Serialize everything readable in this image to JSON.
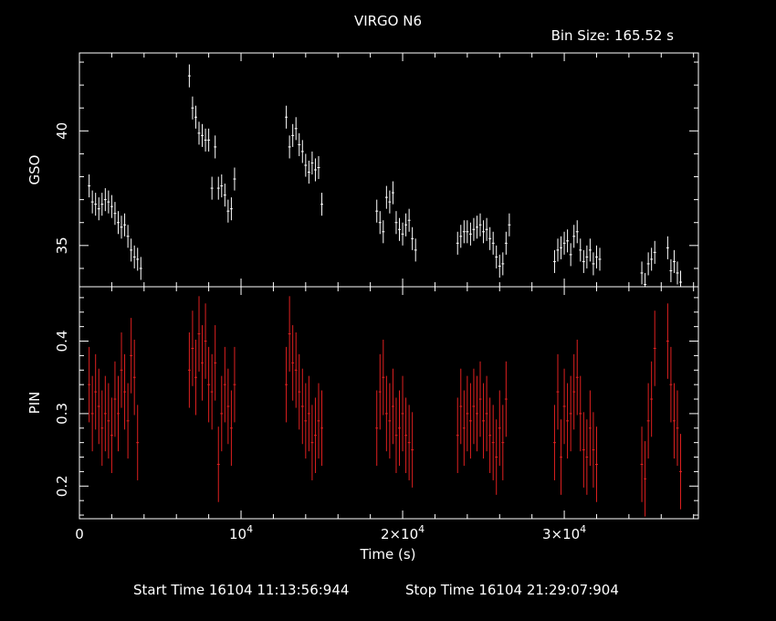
{
  "chart_data": {
    "type": "scatter",
    "title": "VIRGO N6",
    "bin_size": "Bin Size: 165.52 s",
    "xlabel": "Time (s)",
    "xlim": [
      0,
      38300
    ],
    "x_ticks": [
      {
        "value": 0,
        "label": "0",
        "exp": ""
      },
      {
        "value": 10000,
        "label": "10",
        "exp": "4"
      },
      {
        "value": 20000,
        "label": "2×10",
        "exp": "4"
      },
      {
        "value": 30000,
        "label": "3×10",
        "exp": "4"
      }
    ],
    "footer": {
      "start": "Start Time 16104 11:13:56:944",
      "stop": "Stop Time 16104 21:29:07:904"
    },
    "panels": [
      {
        "name": "GSO",
        "ylabel": "GSO",
        "ylim": [
          33.2,
          43.4
        ],
        "color": "#ffffff",
        "yticks": [
          35,
          40
        ],
        "yerr": 0.5,
        "points": [
          [
            600,
            37.6
          ],
          [
            800,
            36.9
          ],
          [
            1000,
            36.8
          ],
          [
            1200,
            36.6
          ],
          [
            1400,
            36.8
          ],
          [
            1600,
            37.0
          ],
          [
            1800,
            36.9
          ],
          [
            2000,
            36.7
          ],
          [
            2200,
            36.4
          ],
          [
            2400,
            36.0
          ],
          [
            2600,
            35.8
          ],
          [
            2800,
            35.9
          ],
          [
            3000,
            35.4
          ],
          [
            3200,
            34.8
          ],
          [
            3400,
            34.5
          ],
          [
            3600,
            34.4
          ],
          [
            3800,
            34.0
          ],
          [
            6800,
            42.4
          ],
          [
            7000,
            41.0
          ],
          [
            7200,
            40.6
          ],
          [
            7400,
            39.9
          ],
          [
            7600,
            39.8
          ],
          [
            7800,
            39.6
          ],
          [
            8000,
            39.6
          ],
          [
            8200,
            37.5
          ],
          [
            8400,
            39.3
          ],
          [
            8600,
            37.5
          ],
          [
            8800,
            37.6
          ],
          [
            9000,
            37.2
          ],
          [
            9200,
            36.5
          ],
          [
            9400,
            36.6
          ],
          [
            9600,
            37.9
          ],
          [
            12800,
            40.6
          ],
          [
            13000,
            39.3
          ],
          [
            13200,
            39.8
          ],
          [
            13400,
            40.1
          ],
          [
            13600,
            39.4
          ],
          [
            13800,
            39.1
          ],
          [
            14000,
            38.5
          ],
          [
            14200,
            38.2
          ],
          [
            14400,
            38.6
          ],
          [
            14600,
            38.3
          ],
          [
            14800,
            38.4
          ],
          [
            15000,
            36.8
          ],
          [
            18400,
            36.5
          ],
          [
            18600,
            36.0
          ],
          [
            18800,
            35.6
          ],
          [
            19000,
            37.1
          ],
          [
            19200,
            36.9
          ],
          [
            19400,
            37.3
          ],
          [
            19600,
            36.0
          ],
          [
            19800,
            35.7
          ],
          [
            20000,
            35.5
          ],
          [
            20200,
            35.9
          ],
          [
            20400,
            36.1
          ],
          [
            20600,
            35.3
          ],
          [
            20800,
            34.8
          ],
          [
            23400,
            35.1
          ],
          [
            23600,
            35.4
          ],
          [
            23800,
            35.6
          ],
          [
            24000,
            35.6
          ],
          [
            24200,
            35.5
          ],
          [
            24400,
            35.7
          ],
          [
            24600,
            35.8
          ],
          [
            24800,
            35.9
          ],
          [
            25000,
            35.6
          ],
          [
            25200,
            35.7
          ],
          [
            25400,
            35.3
          ],
          [
            25600,
            35.1
          ],
          [
            25800,
            34.5
          ],
          [
            26000,
            34.1
          ],
          [
            26200,
            34.2
          ],
          [
            26400,
            35.1
          ],
          [
            26600,
            35.9
          ],
          [
            29400,
            34.3
          ],
          [
            29600,
            34.8
          ],
          [
            29800,
            34.9
          ],
          [
            30000,
            35.1
          ],
          [
            30200,
            35.2
          ],
          [
            30400,
            34.6
          ],
          [
            30600,
            35.4
          ],
          [
            30800,
            35.6
          ],
          [
            31000,
            34.8
          ],
          [
            31200,
            34.3
          ],
          [
            31400,
            34.5
          ],
          [
            31600,
            34.8
          ],
          [
            31800,
            34.2
          ],
          [
            32000,
            34.5
          ],
          [
            32200,
            34.4
          ],
          [
            34800,
            33.8
          ],
          [
            35000,
            33.3
          ],
          [
            35200,
            34.2
          ],
          [
            35400,
            34.4
          ],
          [
            35600,
            34.7
          ],
          [
            36400,
            34.9
          ],
          [
            36600,
            33.9
          ],
          [
            36800,
            34.3
          ],
          [
            37000,
            33.8
          ],
          [
            37200,
            33.4
          ]
        ]
      },
      {
        "name": "PIN",
        "ylabel": "PIN",
        "ylim": [
          0.155,
          0.475
        ],
        "color": "#e02020",
        "yticks": [
          0.2,
          0.3,
          0.4
        ],
        "yerr": 0.052,
        "points": [
          [
            600,
            0.34
          ],
          [
            800,
            0.3
          ],
          [
            1000,
            0.33
          ],
          [
            1200,
            0.31
          ],
          [
            1400,
            0.28
          ],
          [
            1600,
            0.3
          ],
          [
            1800,
            0.29
          ],
          [
            2000,
            0.27
          ],
          [
            2200,
            0.32
          ],
          [
            2400,
            0.3
          ],
          [
            2600,
            0.36
          ],
          [
            2800,
            0.33
          ],
          [
            3000,
            0.29
          ],
          [
            3200,
            0.38
          ],
          [
            3400,
            0.35
          ],
          [
            3600,
            0.26
          ],
          [
            6800,
            0.36
          ],
          [
            7000,
            0.39
          ],
          [
            7200,
            0.35
          ],
          [
            7400,
            0.41
          ],
          [
            7600,
            0.37
          ],
          [
            7800,
            0.4
          ],
          [
            8000,
            0.34
          ],
          [
            8200,
            0.33
          ],
          [
            8400,
            0.37
          ],
          [
            8600,
            0.23
          ],
          [
            8800,
            0.3
          ],
          [
            9000,
            0.34
          ],
          [
            9200,
            0.31
          ],
          [
            9400,
            0.28
          ],
          [
            9600,
            0.34
          ],
          [
            12800,
            0.34
          ],
          [
            13000,
            0.41
          ],
          [
            13200,
            0.37
          ],
          [
            13400,
            0.36
          ],
          [
            13600,
            0.33
          ],
          [
            13800,
            0.31
          ],
          [
            14000,
            0.29
          ],
          [
            14200,
            0.3
          ],
          [
            14400,
            0.26
          ],
          [
            14600,
            0.27
          ],
          [
            14800,
            0.29
          ],
          [
            15000,
            0.28
          ],
          [
            18400,
            0.28
          ],
          [
            18600,
            0.33
          ],
          [
            18800,
            0.35
          ],
          [
            19000,
            0.3
          ],
          [
            19200,
            0.29
          ],
          [
            19400,
            0.31
          ],
          [
            19600,
            0.27
          ],
          [
            19800,
            0.28
          ],
          [
            20000,
            0.3
          ],
          [
            20200,
            0.27
          ],
          [
            20400,
            0.26
          ],
          [
            20600,
            0.25
          ],
          [
            23400,
            0.27
          ],
          [
            23600,
            0.31
          ],
          [
            23800,
            0.28
          ],
          [
            24000,
            0.3
          ],
          [
            24200,
            0.29
          ],
          [
            24400,
            0.31
          ],
          [
            24600,
            0.3
          ],
          [
            24800,
            0.32
          ],
          [
            25000,
            0.29
          ],
          [
            25200,
            0.3
          ],
          [
            25400,
            0.27
          ],
          [
            25600,
            0.26
          ],
          [
            25800,
            0.24
          ],
          [
            26000,
            0.28
          ],
          [
            26200,
            0.26
          ],
          [
            26400,
            0.32
          ],
          [
            29400,
            0.26
          ],
          [
            29600,
            0.33
          ],
          [
            29800,
            0.24
          ],
          [
            30000,
            0.31
          ],
          [
            30200,
            0.29
          ],
          [
            30400,
            0.3
          ],
          [
            30600,
            0.33
          ],
          [
            30800,
            0.35
          ],
          [
            31000,
            0.3
          ],
          [
            31200,
            0.25
          ],
          [
            31400,
            0.24
          ],
          [
            31600,
            0.28
          ],
          [
            31800,
            0.25
          ],
          [
            32000,
            0.23
          ],
          [
            34800,
            0.23
          ],
          [
            35000,
            0.21
          ],
          [
            35200,
            0.29
          ],
          [
            35400,
            0.32
          ],
          [
            35600,
            0.39
          ],
          [
            36400,
            0.4
          ],
          [
            36600,
            0.34
          ],
          [
            36800,
            0.29
          ],
          [
            37000,
            0.28
          ],
          [
            37200,
            0.22
          ]
        ]
      }
    ]
  }
}
